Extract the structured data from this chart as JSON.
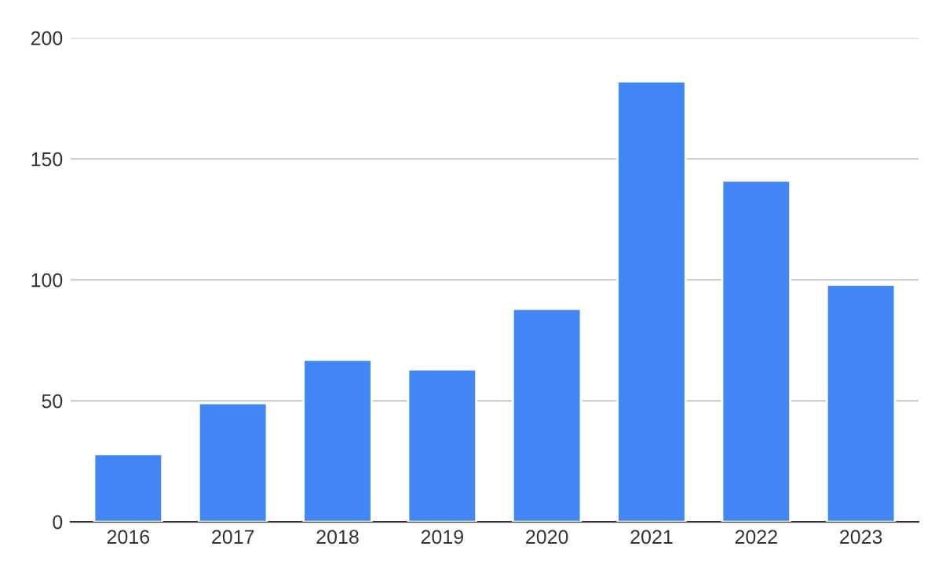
{
  "chart_data": {
    "type": "bar",
    "categories": [
      "2016",
      "2017",
      "2018",
      "2019",
      "2020",
      "2021",
      "2022",
      "2023"
    ],
    "values": [
      28,
      49,
      67,
      63,
      88,
      182,
      141,
      98
    ],
    "color": "#4285f4",
    "ylim": [
      0,
      200
    ],
    "yticks": [
      0,
      50,
      100,
      150,
      200
    ],
    "grid": "y"
  }
}
